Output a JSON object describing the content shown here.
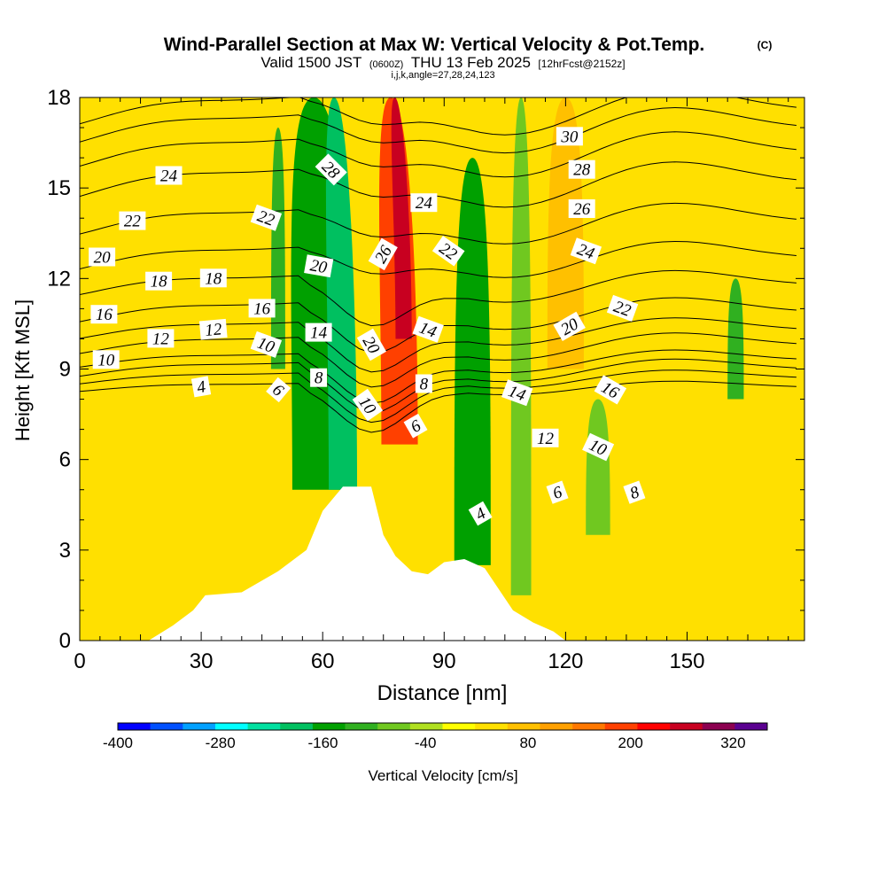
{
  "chart_data": {
    "type": "contour",
    "title": "Wind-Parallel Section at Max W: Vertical Velocity & Pot.Temp.",
    "copyright_mark": "(C)",
    "subtitle": {
      "valid": "Valid 1500 JST",
      "zulu": "(0600Z)",
      "date": "THU 13 Feb 2025",
      "forecast": "[12hrFcst@2152z]"
    },
    "indices_label": "i,j,k,angle=27,28,24,123",
    "xlabel": "Distance [nm]",
    "ylabel": "Height [Kft MSL]",
    "xlim": [
      0,
      179
    ],
    "ylim": [
      0,
      18
    ],
    "xticks": [
      0,
      30,
      60,
      90,
      120,
      150
    ],
    "xtick_labels": [
      "0",
      "30",
      "60",
      "90",
      "120",
      "150"
    ],
    "yticks": [
      0,
      3,
      6,
      9,
      12,
      15,
      18
    ],
    "ytick_labels": [
      "0",
      "3",
      "6",
      "9",
      "12",
      "15",
      "18"
    ],
    "colorbar": {
      "label": "Vertical Velocity [cm/s]",
      "min": -400,
      "max": 360,
      "step": 40,
      "tick_values": [
        -400,
        -280,
        -160,
        -40,
        80,
        200,
        320
      ],
      "tick_labels": [
        "-400",
        "-280",
        "-160",
        "-40",
        "80",
        "200",
        "320"
      ],
      "colors": [
        "#0000ff",
        "#0050ff",
        "#00a0ff",
        "#00ffff",
        "#00e0a0",
        "#00c060",
        "#00a000",
        "#30b020",
        "#70c820",
        "#b0e020",
        "#ffff00",
        "#ffe000",
        "#ffc000",
        "#ffa000",
        "#ff7800",
        "#ff4000",
        "#ff0000",
        "#c80020",
        "#8c0050",
        "#5a0090"
      ]
    },
    "vertical_velocity_bands": [
      {
        "x": 5,
        "w": 6,
        "y0": 10.5,
        "y1": 15,
        "value": 60
      },
      {
        "x": 31,
        "w": 4,
        "y0": 6,
        "y1": 15,
        "value": 60
      },
      {
        "x": 49,
        "w": 3.5,
        "y0": 9,
        "y1": 17,
        "value": -100
      },
      {
        "x": 60,
        "w": 15,
        "y0": 5,
        "y1": 18,
        "value": -160
      },
      {
        "x": 65,
        "w": 7,
        "y0": 5,
        "y1": 18,
        "value": -200
      },
      {
        "x": 79,
        "w": 9,
        "y0": 6.5,
        "y1": 18,
        "value": 200
      },
      {
        "x": 80,
        "w": 4,
        "y0": 10,
        "y1": 18,
        "value": 300
      },
      {
        "x": 97,
        "w": 9,
        "y0": 2.5,
        "y1": 16,
        "value": -160
      },
      {
        "x": 109,
        "w": 5,
        "y0": 1.5,
        "y1": 18,
        "value": -80
      },
      {
        "x": 120,
        "w": 9,
        "y0": 9,
        "y1": 18,
        "value": 80
      },
      {
        "x": 128,
        "w": 6,
        "y0": 3.5,
        "y1": 8,
        "value": -80
      },
      {
        "x": 140,
        "w": 9,
        "y0": 3,
        "y1": 17,
        "value": 60
      },
      {
        "x": 162,
        "w": 4,
        "y0": 8,
        "y1": 12,
        "value": -100
      }
    ],
    "terrain_profile": [
      [
        0,
        0
      ],
      [
        17,
        0
      ],
      [
        23,
        0.5
      ],
      [
        28,
        1
      ],
      [
        31,
        1.5
      ],
      [
        40,
        1.6
      ],
      [
        49,
        2.3
      ],
      [
        56,
        3
      ],
      [
        60,
        4.3
      ],
      [
        65,
        5.1
      ],
      [
        72,
        5.1
      ],
      [
        75,
        3.5
      ],
      [
        78,
        2.8
      ],
      [
        82,
        2.3
      ],
      [
        86,
        2.2
      ],
      [
        90,
        2.6
      ],
      [
        95,
        2.7
      ],
      [
        100,
        2.4
      ],
      [
        104,
        1.6
      ],
      [
        107,
        1.0
      ],
      [
        112,
        0.6
      ],
      [
        117,
        0.3
      ],
      [
        120,
        0
      ]
    ],
    "isentropes": [
      {
        "label": "4",
        "y_left": 8.4,
        "amp": 0.3
      },
      {
        "label": "6",
        "y_left": 8.7,
        "amp": 0.4
      },
      {
        "label": "8",
        "y_left": 9.0,
        "amp": 0.5
      },
      {
        "label": "10",
        "y_left": 9.3,
        "amp": 0.5
      },
      {
        "label": "12",
        "y_left": 9.8,
        "amp": 0.6
      },
      {
        "label": "14",
        "y_left": 10.3,
        "amp": 0.6
      },
      {
        "label": "16",
        "y_left": 10.9,
        "amp": 0.7
      },
      {
        "label": "18",
        "y_left": 11.8,
        "amp": 0.7
      },
      {
        "label": "20",
        "y_left": 12.7,
        "amp": 0.8
      },
      {
        "label": "22",
        "y_left": 13.9,
        "amp": 0.9
      },
      {
        "label": "24",
        "y_left": 15.2,
        "amp": 1.0
      },
      {
        "label": "26",
        "y_left": 16.2,
        "amp": 1.0
      },
      {
        "label": "28",
        "y_left": 17.0,
        "amp": 1.0
      },
      {
        "label": "30",
        "y_left": 17.6,
        "amp": 1.0
      }
    ],
    "contour_labels": [
      {
        "text": "24",
        "x": 22,
        "y": 15.4,
        "angle": 0
      },
      {
        "text": "22",
        "x": 13,
        "y": 13.9,
        "angle": 0
      },
      {
        "text": "20",
        "x": 5.5,
        "y": 12.7,
        "angle": 0
      },
      {
        "text": "18",
        "x": 19.5,
        "y": 11.9,
        "angle": 0
      },
      {
        "text": "18",
        "x": 33,
        "y": 12.0,
        "angle": 0
      },
      {
        "text": "16",
        "x": 6,
        "y": 10.8,
        "angle": 0
      },
      {
        "text": "16",
        "x": 45,
        "y": 11.0,
        "angle": 0
      },
      {
        "text": "12",
        "x": 20,
        "y": 10.0,
        "angle": 0
      },
      {
        "text": "12",
        "x": 33,
        "y": 10.3,
        "angle": -5
      },
      {
        "text": "10",
        "x": 6.5,
        "y": 9.3,
        "angle": 0
      },
      {
        "text": "10",
        "x": 46,
        "y": 9.8,
        "angle": 20
      },
      {
        "text": "4",
        "x": 30,
        "y": 8.4,
        "angle": -10
      },
      {
        "text": "6",
        "x": 49,
        "y": 8.3,
        "angle": 40
      },
      {
        "text": "8",
        "x": 59,
        "y": 8.7,
        "angle": 0
      },
      {
        "text": "14",
        "x": 59,
        "y": 10.2,
        "angle": 0
      },
      {
        "text": "20",
        "x": 59,
        "y": 12.4,
        "angle": 10
      },
      {
        "text": "22",
        "x": 46,
        "y": 14.0,
        "angle": 20
      },
      {
        "text": "28",
        "x": 62,
        "y": 15.6,
        "angle": 45
      },
      {
        "text": "26",
        "x": 75,
        "y": 12.8,
        "angle": -60
      },
      {
        "text": "20",
        "x": 72,
        "y": 9.8,
        "angle": 60
      },
      {
        "text": "10",
        "x": 71,
        "y": 7.8,
        "angle": 55
      },
      {
        "text": "24",
        "x": 85,
        "y": 14.5,
        "angle": 0
      },
      {
        "text": "22",
        "x": 91,
        "y": 12.9,
        "angle": 35
      },
      {
        "text": "14",
        "x": 86,
        "y": 10.3,
        "angle": 20
      },
      {
        "text": "8",
        "x": 85,
        "y": 8.5,
        "angle": 0
      },
      {
        "text": "6",
        "x": 83,
        "y": 7.1,
        "angle": -30
      },
      {
        "text": "4",
        "x": 99,
        "y": 4.2,
        "angle": -30
      },
      {
        "text": "14",
        "x": 108,
        "y": 8.2,
        "angle": 20
      },
      {
        "text": "12",
        "x": 115,
        "y": 6.7,
        "angle": 0
      },
      {
        "text": "6",
        "x": 118,
        "y": 4.9,
        "angle": -20
      },
      {
        "text": "10",
        "x": 128,
        "y": 6.4,
        "angle": 25
      },
      {
        "text": "8",
        "x": 137,
        "y": 4.9,
        "angle": -20
      },
      {
        "text": "16",
        "x": 131,
        "y": 8.3,
        "angle": 30
      },
      {
        "text": "20",
        "x": 121,
        "y": 10.4,
        "angle": -30
      },
      {
        "text": "22",
        "x": 134,
        "y": 11.0,
        "angle": 20
      },
      {
        "text": "24",
        "x": 125,
        "y": 12.9,
        "angle": 20
      },
      {
        "text": "26",
        "x": 124,
        "y": 14.3,
        "angle": 0
      },
      {
        "text": "28",
        "x": 124,
        "y": 15.6,
        "angle": 0
      },
      {
        "text": "30",
        "x": 121,
        "y": 16.7,
        "angle": 0
      }
    ]
  }
}
